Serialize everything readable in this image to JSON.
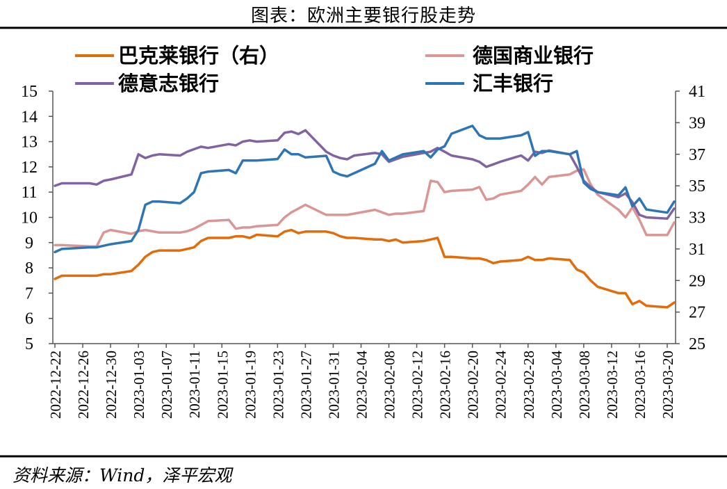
{
  "title": "图表：欧洲主要银行股走势",
  "source": "资料来源：Wind，泽平宏观",
  "colors": {
    "bnp_paribas": "#E36C0A",
    "commerzbank": "#D99694",
    "deutsche_bank": "#8064A2",
    "hsbc": "#2E75B6"
  },
  "chart_data": {
    "type": "line",
    "x": [
      "2022-12-22",
      "2022-12-23",
      "2022-12-27",
      "2022-12-28",
      "2022-12-29",
      "2022-12-30",
      "2023-01-02",
      "2023-01-03",
      "2023-01-04",
      "2023-01-05",
      "2023-01-06",
      "2023-01-09",
      "2023-01-10",
      "2023-01-11",
      "2023-01-12",
      "2023-01-13",
      "2023-01-16",
      "2023-01-17",
      "2023-01-18",
      "2023-01-19",
      "2023-01-20",
      "2023-01-23",
      "2023-01-24",
      "2023-01-25",
      "2023-01-26",
      "2023-01-27",
      "2023-01-30",
      "2023-01-31",
      "2023-02-01",
      "2023-02-02",
      "2023-02-03",
      "2023-02-06",
      "2023-02-07",
      "2023-02-08",
      "2023-02-09",
      "2023-02-10",
      "2023-02-13",
      "2023-02-14",
      "2023-02-15",
      "2023-02-16",
      "2023-02-17",
      "2023-02-20",
      "2023-02-21",
      "2023-02-22",
      "2023-02-23",
      "2023-02-24",
      "2023-02-27",
      "2023-02-28",
      "2023-03-01",
      "2023-03-02",
      "2023-03-03",
      "2023-03-06",
      "2023-03-07",
      "2023-03-08",
      "2023-03-09",
      "2023-03-10",
      "2023-03-13",
      "2023-03-14",
      "2023-03-15",
      "2023-03-16",
      "2023-03-17",
      "2023-03-20",
      "2023-03-21"
    ],
    "x_tick_labels": [
      "2022-12-22",
      "2022-12-26",
      "2022-12-30",
      "2023-01-03",
      "2023-01-07",
      "2023-01-11",
      "2023-01-15",
      "2023-01-19",
      "2023-01-23",
      "2023-01-27",
      "2023-01-31",
      "2023-02-04",
      "2023-02-08",
      "2023-02-12",
      "2023-02-16",
      "2023-02-20",
      "2023-02-24",
      "2023-02-28",
      "2023-03-04",
      "2023-03-08",
      "2023-03-12",
      "2023-03-16",
      "2023-03-20"
    ],
    "y_left": {
      "min": 5,
      "max": 15,
      "step": 1,
      "ticks": [
        "5",
        "6",
        "7",
        "8",
        "9",
        "10",
        "11",
        "12",
        "13",
        "14",
        "15"
      ]
    },
    "y_right": {
      "min": 25,
      "max": 41,
      "step": 2,
      "ticks": [
        "25",
        "27",
        "29",
        "31",
        "33",
        "35",
        "37",
        "39",
        "41"
      ]
    },
    "legend_position": "top",
    "grid": false,
    "series": [
      {
        "name": "巴克莱银行（右）",
        "axis": "right",
        "color_key": "bnp_paribas",
        "values": [
          29.1,
          29.3,
          29.3,
          29.3,
          29.4,
          29.4,
          29.6,
          30.0,
          30.5,
          30.8,
          30.9,
          30.9,
          31.0,
          31.1,
          31.5,
          31.7,
          31.7,
          31.8,
          31.8,
          31.7,
          31.9,
          31.8,
          32.1,
          32.2,
          32.0,
          32.1,
          32.1,
          32.0,
          31.8,
          31.7,
          31.7,
          31.6,
          31.6,
          31.5,
          31.6,
          31.4,
          31.5,
          31.6,
          31.7,
          30.5,
          30.5,
          30.4,
          30.4,
          30.3,
          30.1,
          30.2,
          30.3,
          30.5,
          30.3,
          30.3,
          30.4,
          30.3,
          29.7,
          29.5,
          29.0,
          28.6,
          28.2,
          28.2,
          27.5,
          27.7,
          27.4,
          27.3,
          27.6
        ]
      },
      {
        "name": "德国商业银行",
        "axis": "left",
        "color_key": "commerzbank",
        "values": [
          8.9,
          8.9,
          8.85,
          8.85,
          9.4,
          9.5,
          9.35,
          9.45,
          9.5,
          9.45,
          9.4,
          9.4,
          9.45,
          9.55,
          9.7,
          9.85,
          9.9,
          9.55,
          9.6,
          9.6,
          9.65,
          9.7,
          10.0,
          10.2,
          10.35,
          10.5,
          10.1,
          10.1,
          10.1,
          10.1,
          10.15,
          10.3,
          10.2,
          10.1,
          10.15,
          10.15,
          10.25,
          11.45,
          11.4,
          11.0,
          11.05,
          11.1,
          11.2,
          10.7,
          10.75,
          10.9,
          11.05,
          11.3,
          11.6,
          11.3,
          11.6,
          11.7,
          11.85,
          11.9,
          11.3,
          10.9,
          10.3,
          10.0,
          10.4,
          9.9,
          9.3,
          9.3,
          9.8
        ]
      },
      {
        "name": "德意志银行",
        "axis": "left",
        "color_key": "deutsche_bank",
        "values": [
          11.25,
          11.35,
          11.35,
          11.3,
          11.45,
          11.5,
          11.7,
          12.5,
          12.35,
          12.45,
          12.5,
          12.45,
          12.6,
          12.7,
          12.8,
          12.75,
          12.9,
          12.85,
          13.0,
          13.05,
          13.0,
          13.05,
          13.35,
          13.4,
          13.3,
          13.45,
          12.6,
          12.45,
          12.35,
          12.3,
          12.45,
          12.55,
          12.5,
          12.2,
          12.3,
          12.4,
          12.55,
          12.6,
          12.75,
          12.6,
          12.45,
          12.3,
          12.2,
          12.0,
          12.1,
          12.2,
          12.45,
          12.25,
          12.6,
          12.55,
          12.65,
          12.5,
          12.0,
          11.45,
          11.2,
          11.0,
          10.8,
          10.95,
          10.6,
          10.1,
          10.0,
          9.95,
          10.35
        ]
      },
      {
        "name": "汇丰银行",
        "axis": "right",
        "color_key": "hsbc",
        "values": [
          30.8,
          31.0,
          31.1,
          31.1,
          31.2,
          31.3,
          31.5,
          32.2,
          33.8,
          34.0,
          34.0,
          33.9,
          34.2,
          34.6,
          35.8,
          35.9,
          36.0,
          35.8,
          36.6,
          36.6,
          36.6,
          36.7,
          37.3,
          37.0,
          37.0,
          36.8,
          36.9,
          35.9,
          35.7,
          35.6,
          35.8,
          36.4,
          37.2,
          36.6,
          36.8,
          37.0,
          37.2,
          36.8,
          37.3,
          37.5,
          38.3,
          38.8,
          38.2,
          38.0,
          38.0,
          38.0,
          38.2,
          38.4,
          36.9,
          37.2,
          37.2,
          37.0,
          37.2,
          35.2,
          34.8,
          34.6,
          34.4,
          34.9,
          33.7,
          34.2,
          33.5,
          33.3,
          34.0
        ]
      }
    ]
  }
}
